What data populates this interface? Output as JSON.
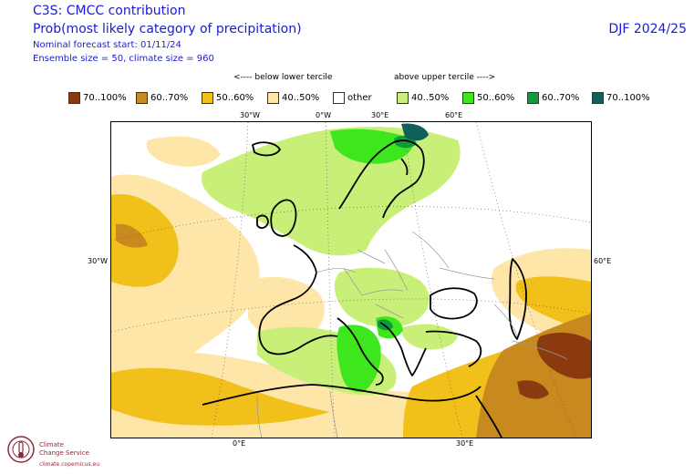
{
  "header": {
    "title": "C3S: CMCC contribution",
    "subtitle": "Prob(most likely category of precipitation)",
    "forecast_start": "Nominal forecast start: 01/11/24",
    "ensemble": "Ensemble size = 50, climate size = 960",
    "season": "DJF 2024/25"
  },
  "legend": {
    "lower_label": "<---- below lower tercile",
    "upper_label": "above upper tercile ---->",
    "items": [
      {
        "label": "70..100%",
        "color": "#8b3a0f"
      },
      {
        "label": "60..70%",
        "color": "#c88a1e"
      },
      {
        "label": "50..60%",
        "color": "#f2c01a"
      },
      {
        "label": "40..50%",
        "color": "#fde6a8"
      },
      {
        "label": "other",
        "color": "#ffffff"
      },
      {
        "label": "40..50%",
        "color": "#c8f078"
      },
      {
        "label": "50..60%",
        "color": "#3ee61e"
      },
      {
        "label": "60..70%",
        "color": "#0f9a3c"
      },
      {
        "label": "70..100%",
        "color": "#0f5f5a"
      }
    ]
  },
  "axes": {
    "top": [
      "30°W",
      "0°W",
      "30°E",
      "60°E"
    ],
    "bottom": [
      "0°E",
      "30°E"
    ],
    "left": "30°W",
    "right": "60°E"
  },
  "logo": {
    "line1": "Climate",
    "line2": "Change Service",
    "url": "climate.copernicus.eu"
  }
}
